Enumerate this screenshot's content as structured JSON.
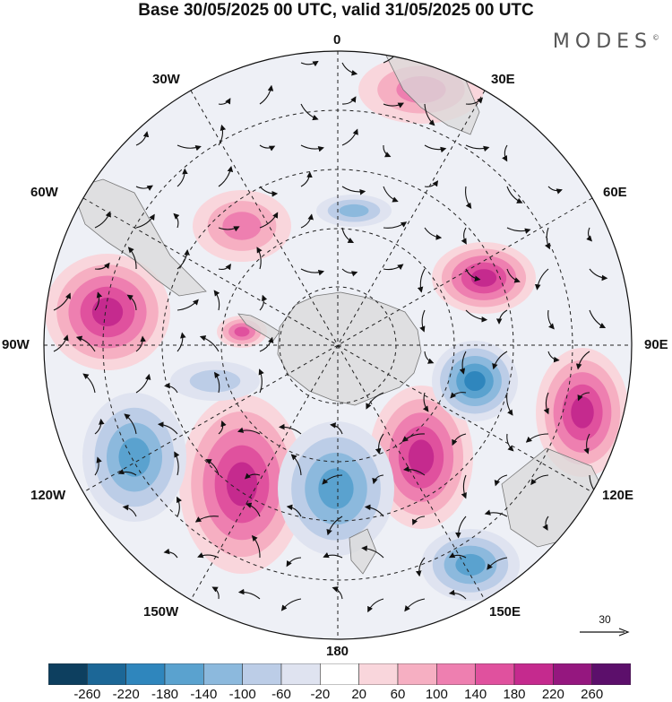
{
  "title": "Base 30/05/2025 00 UTC, valid 31/05/2025 00 UTC",
  "brand": "MODES",
  "brand_mark": "©",
  "longitude_labels": {
    "top": "0",
    "lon30e": "30E",
    "lon60e": "60E",
    "lon90e": "90E",
    "lon120e": "120E",
    "lon150e": "150E",
    "bottom": "180",
    "lon150w": "150W",
    "lon120w": "120W",
    "lon90w": "90W",
    "lon60w": "60W",
    "lon30w": "30W"
  },
  "reference_vector": {
    "label": "30"
  },
  "colorbar": {
    "colors": [
      "#0d3f5f",
      "#1c6797",
      "#2f86bd",
      "#5aa2cf",
      "#8cb9dd",
      "#bccde7",
      "#dfe3f0",
      "#ffffff",
      "#f9d6dc",
      "#f6afc2",
      "#ee7fb0",
      "#e0519e",
      "#c52a8e",
      "#95177f",
      "#5c0f6b"
    ],
    "tick_labels": [
      "-260",
      "-220",
      "-180",
      "-140",
      "-100",
      "-60",
      "-20",
      "20",
      "60",
      "100",
      "140",
      "180",
      "220",
      "260"
    ]
  },
  "anomalies": [
    {
      "sign": "+",
      "level": 2
    },
    {
      "sign": "+",
      "level": 4
    },
    {
      "sign": "+",
      "level": 2
    },
    {
      "sign": "+",
      "level": 4
    },
    {
      "sign": "+",
      "level": 3
    },
    {
      "sign": "+",
      "level": 4
    },
    {
      "sign": "+",
      "level": 4
    },
    {
      "sign": "+",
      "level": 4
    },
    {
      "sign": "-",
      "level": 3
    },
    {
      "sign": "-",
      "level": 3
    },
    {
      "sign": "-",
      "level": 4
    },
    {
      "sign": "-",
      "level": 3
    },
    {
      "sign": "-",
      "level": 1
    },
    {
      "sign": "-",
      "level": 2
    }
  ]
}
